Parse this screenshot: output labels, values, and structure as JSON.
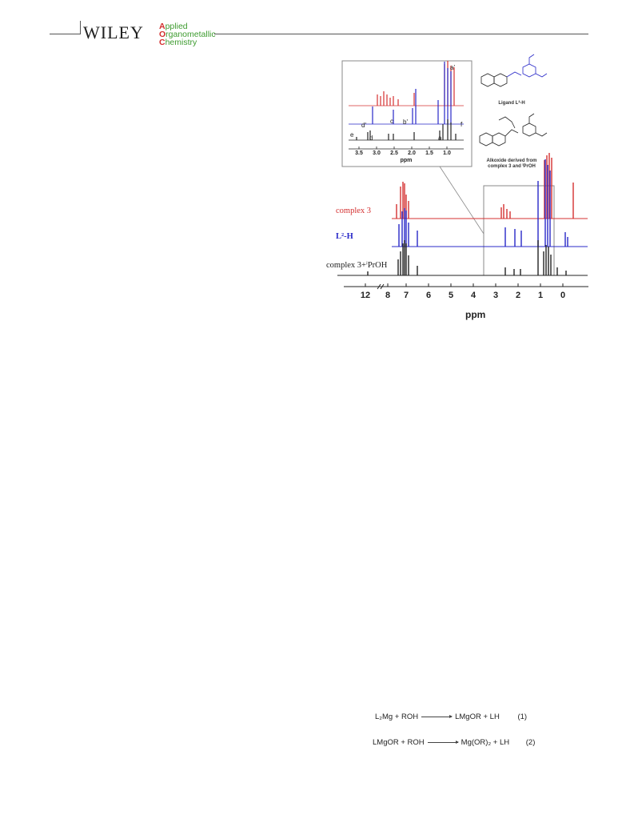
{
  "header": {
    "publisher": "WILEY",
    "journal_lines": [
      {
        "cap": "A",
        "rest": "pplied"
      },
      {
        "cap": "O",
        "rest": "rganometallic"
      },
      {
        "cap": "C",
        "rest": "hemistry"
      }
    ]
  },
  "figure": {
    "spectra_labels": {
      "red": "complex 3",
      "blue": "L²-H",
      "black": "complex 3+ⁱPrOH"
    },
    "x_axis": {
      "label": "ppm",
      "ticks": [
        "12",
        "8",
        "7",
        "6",
        "5",
        "4",
        "3",
        "2",
        "1",
        "0"
      ]
    },
    "inset": {
      "axis_label": "ppm",
      "ticks": [
        "3.5",
        "3.0",
        "2.5",
        "2.0",
        "1.5",
        "1.0"
      ],
      "peak_labels": [
        "a'",
        "d'",
        "c",
        "b'",
        "f",
        "e",
        "d",
        "a"
      ]
    },
    "structures": {
      "ligand_caption": "Ligand L²-H",
      "alkoxide_caption_1": "Alkoxide derived from",
      "alkoxide_caption_2": "complex 3 and ⁱPrOH"
    },
    "colors": {
      "red": "#d43030",
      "blue": "#2828c8",
      "black": "#222222"
    }
  },
  "equations": [
    {
      "left": "L₂Mg  +  ROH",
      "right": "LMgOR + LH",
      "number": "(1)"
    },
    {
      "left": "LMgOR + ROH",
      "right": "Mg(OR)₂ + LH",
      "number": "(2)"
    }
  ]
}
